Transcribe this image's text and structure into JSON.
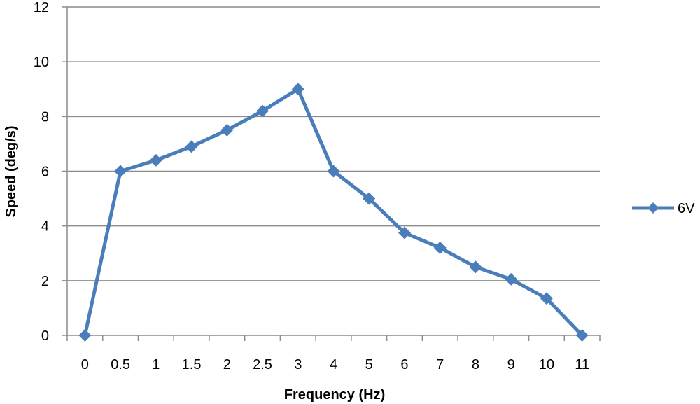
{
  "chart_data": {
    "type": "line",
    "title": "",
    "xlabel": "Frequency (Hz)",
    "ylabel": "Speed (deg/s)",
    "categories": [
      "0",
      "0.5",
      "1",
      "1.5",
      "2",
      "2.5",
      "3",
      "4",
      "5",
      "6",
      "7",
      "8",
      "9",
      "10",
      "11"
    ],
    "series": [
      {
        "name": "6V",
        "color": "#4a7ebb",
        "marker": "diamond",
        "values": [
          0,
          6.0,
          6.4,
          6.9,
          7.5,
          8.2,
          9.0,
          6.0,
          5.0,
          3.75,
          3.2,
          2.5,
          2.05,
          1.35,
          0
        ]
      }
    ],
    "ylim": [
      0,
      12
    ],
    "yticks": [
      "0",
      "2",
      "4",
      "6",
      "8",
      "10",
      "12"
    ],
    "grid": "horizontal",
    "legend_position": "right"
  }
}
